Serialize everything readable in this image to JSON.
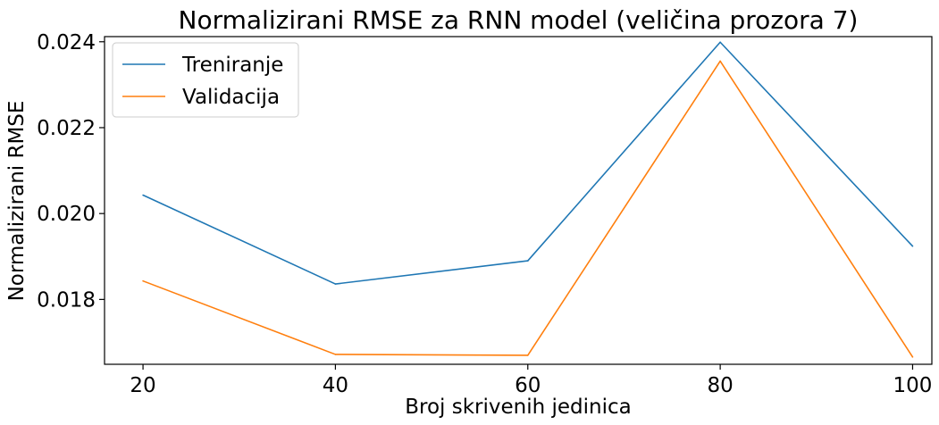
{
  "chart_data": {
    "type": "line",
    "title": "Normalizirani RMSE za RNN model (veličina prozora 7)",
    "xlabel": "Broj skrivenih jedinica",
    "ylabel": "Normalizirani RMSE",
    "x": [
      20,
      40,
      60,
      80,
      100
    ],
    "xticks": [
      "20",
      "40",
      "60",
      "80",
      "100"
    ],
    "yticks": [
      "0.018",
      "0.020",
      "0.022",
      "0.024"
    ],
    "ytick_values": [
      0.018,
      0.02,
      0.022,
      0.024
    ],
    "xlim": [
      16,
      102
    ],
    "ylim": [
      0.01649,
      0.02412
    ],
    "grid": false,
    "legend_position": "top-left",
    "series": [
      {
        "name": "Treniranje",
        "color": "#1f77b4",
        "values": [
          0.02043,
          0.01836,
          0.0189,
          0.02399,
          0.01924
        ]
      },
      {
        "name": "Validacija",
        "color": "#ff7f0e",
        "values": [
          0.01843,
          0.01672,
          0.0167,
          0.02355,
          0.01666
        ]
      }
    ]
  }
}
